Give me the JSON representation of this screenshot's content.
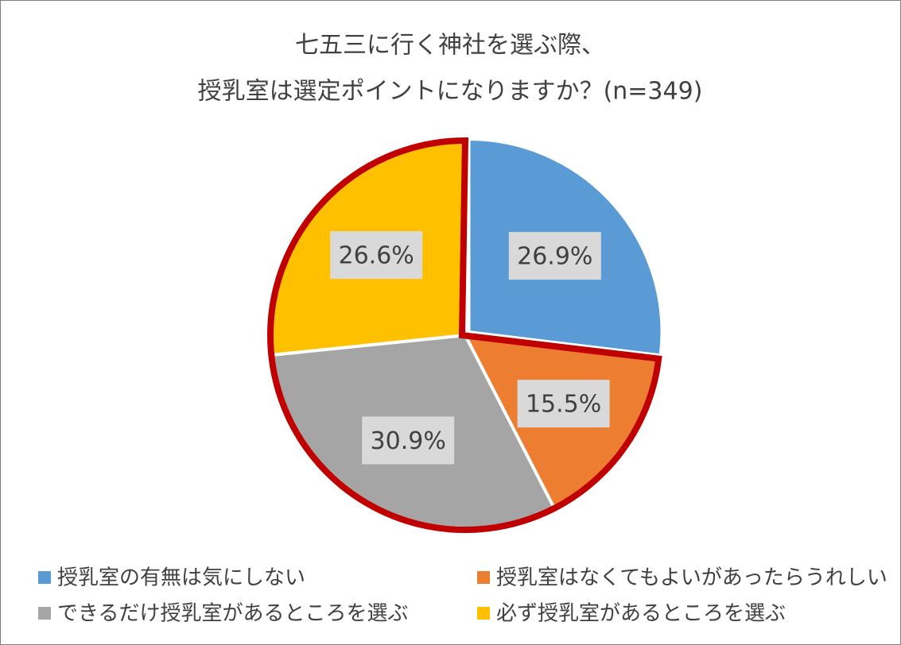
{
  "chart_data": {
    "type": "pie",
    "title": [
      "七五三に行く神社を選ぶ際、",
      "授乳室は選定ポイントになりますか？(n=349)"
    ],
    "categories": [
      "授乳室の有無は気にしない",
      "授乳室はなくてもよいがあったらうれしい",
      "できるだけ授乳室があるところを選ぶ",
      "必ず授乳室があるところを選ぶ"
    ],
    "values": [
      26.9,
      15.5,
      30.9,
      26.6
    ],
    "value_labels": [
      "26.9%",
      "15.5%",
      "30.9%",
      "26.6%"
    ],
    "colors": [
      "#5b9bd5",
      "#ed7d31",
      "#a5a5a5",
      "#ffc000"
    ]
  }
}
